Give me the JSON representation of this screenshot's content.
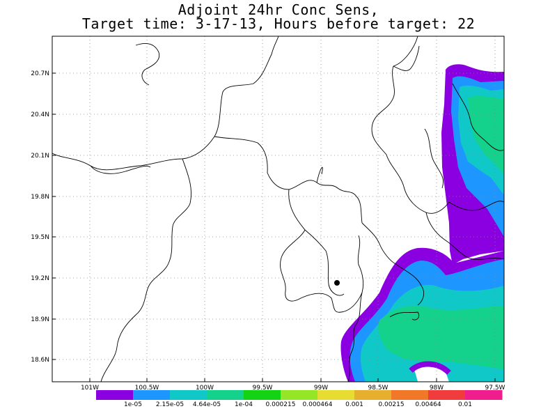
{
  "title_line1": "Adjoint 24hr Conc Sens,",
  "title_line2": "Target time: 3-17-13, Hours before target: 22",
  "lat_labels": [
    "20.7N",
    "20.4N",
    "20.1N",
    "19.8N",
    "19.5N",
    "19.2N",
    "18.9N",
    "18.6N"
  ],
  "lon_labels": [
    "101W",
    "100.5W",
    "100W",
    "99.5W",
    "99W",
    "98.5W",
    "98W",
    "97.5W"
  ],
  "colorbar": {
    "colors": [
      "#8a00e0",
      "#1e96ff",
      "#10c8c8",
      "#14d28c",
      "#14d214",
      "#96e628",
      "#e6dc32",
      "#e6af2d",
      "#f07828",
      "#f03c3c",
      "#f01e8c"
    ],
    "labels": [
      "1e-05",
      "2.15e-05",
      "4.64e-05",
      "1e-04",
      "0.000215",
      "0.000464",
      "0.001",
      "0.00215",
      "0.00464",
      "0.01"
    ]
  },
  "marker_icon": "target-point-dot"
}
